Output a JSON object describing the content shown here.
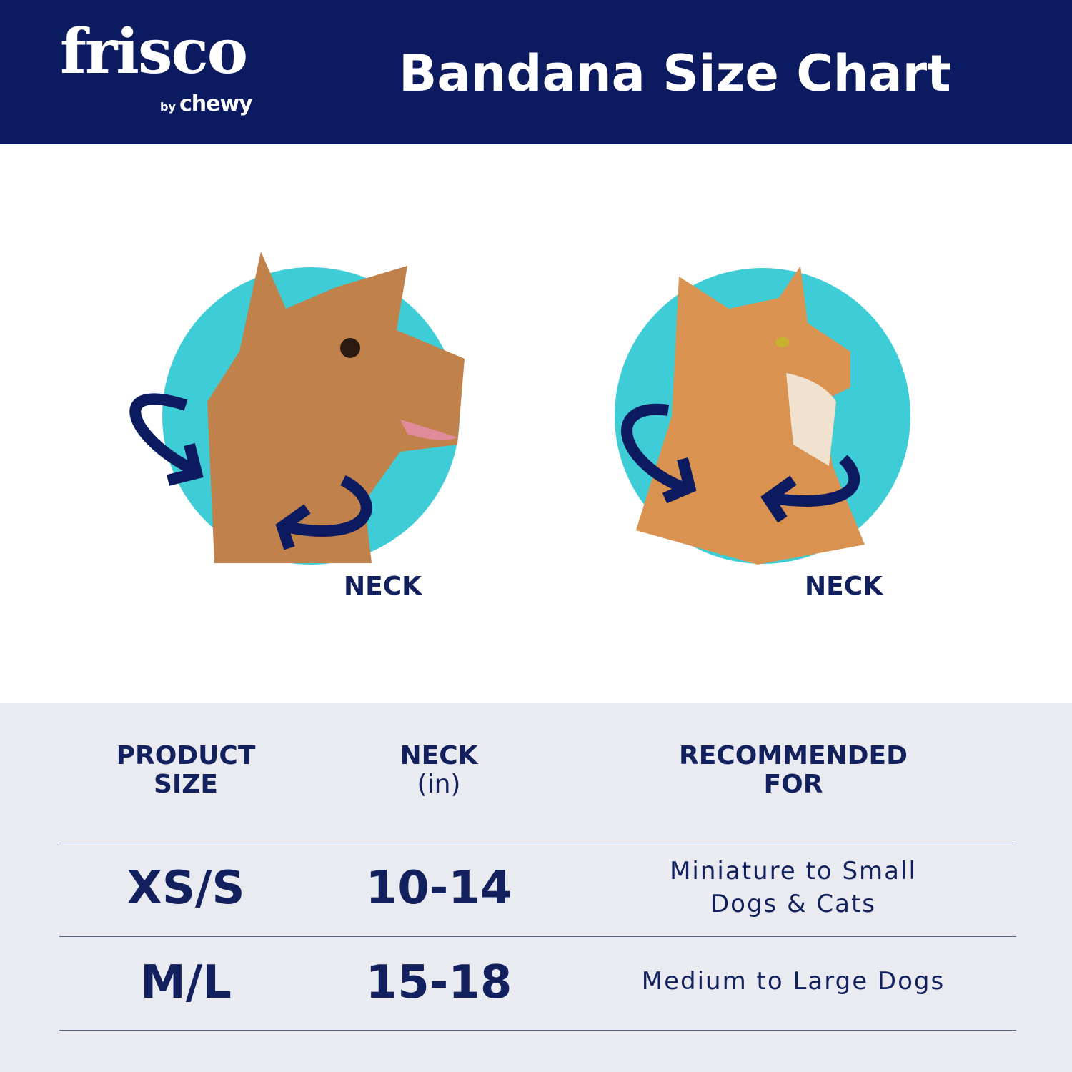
{
  "header": {
    "logo_brand": "frisco",
    "logo_sub_by": "by",
    "logo_sub_name": "chewy",
    "title": "Bandana Size Chart"
  },
  "illustrations": [
    {
      "animal": "dog",
      "label": "NECK"
    },
    {
      "animal": "cat",
      "label": "NECK"
    }
  ],
  "colors": {
    "navy": "#0c1a5f",
    "teal": "#3ecdd6",
    "table_bg": "#e9ebf1"
  },
  "table": {
    "headers": [
      {
        "line1": "PRODUCT",
        "line2": "SIZE"
      },
      {
        "line1": "NECK",
        "line2": "(in)"
      },
      {
        "line1": "RECOMMENDED",
        "line2": "FOR"
      }
    ],
    "rows": [
      {
        "size": "XS/S",
        "neck": "10-14",
        "rec_line1": "Miniature to Small",
        "rec_line2": "Dogs & Cats"
      },
      {
        "size": "M/L",
        "neck": "15-18",
        "rec_line1": "Medium to Large Dogs",
        "rec_line2": ""
      }
    ]
  }
}
